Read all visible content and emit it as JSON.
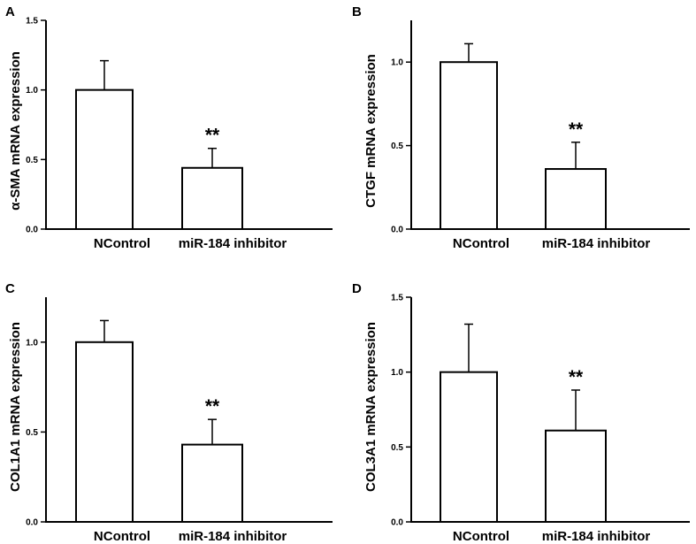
{
  "chart_data": [
    {
      "type": "bar",
      "panel": "A",
      "ylabel": "α-SMA  mRNA expression",
      "categories": [
        "NControl",
        "miR-184 inhibitor"
      ],
      "values": [
        1.0,
        0.44
      ],
      "errors": [
        0.21,
        0.14
      ],
      "significance": [
        "",
        "**"
      ],
      "ylim": [
        0,
        1.5
      ],
      "yticks": [
        "0.0",
        "0.5",
        "1.0",
        "1.5"
      ],
      "ytick_values": [
        0,
        0.5,
        1.0,
        1.5
      ]
    },
    {
      "type": "bar",
      "panel": "B",
      "ylabel": "CTGF mRNA expression",
      "categories": [
        "NControl",
        "miR-184 inhibitor"
      ],
      "values": [
        1.0,
        0.36
      ],
      "errors": [
        0.11,
        0.16
      ],
      "significance": [
        "",
        "**"
      ],
      "ylim": [
        0,
        1.25
      ],
      "yticks": [
        "0.0",
        "0.5",
        "1.0"
      ],
      "ytick_values": [
        0,
        0.5,
        1.0
      ]
    },
    {
      "type": "bar",
      "panel": "C",
      "ylabel": "COL1A1 mRNA expression",
      "categories": [
        "NControl",
        "miR-184 inhibitor"
      ],
      "values": [
        1.0,
        0.43
      ],
      "errors": [
        0.12,
        0.14
      ],
      "significance": [
        "",
        "**"
      ],
      "ylim": [
        0,
        1.25
      ],
      "yticks": [
        "0.0",
        "0.5",
        "1.0"
      ],
      "ytick_values": [
        0,
        0.5,
        1.0
      ]
    },
    {
      "type": "bar",
      "panel": "D",
      "ylabel": "COL3A1 mRNA expression",
      "categories": [
        "NControl",
        "miR-184 inhibitor"
      ],
      "values": [
        1.0,
        0.61
      ],
      "errors": [
        0.32,
        0.27
      ],
      "significance": [
        "",
        "**"
      ],
      "ylim": [
        0,
        1.5
      ],
      "yticks": [
        "0.0",
        "0.5",
        "1.0",
        "1.5"
      ],
      "ytick_values": [
        0,
        0.5,
        1.0,
        1.5
      ]
    }
  ]
}
